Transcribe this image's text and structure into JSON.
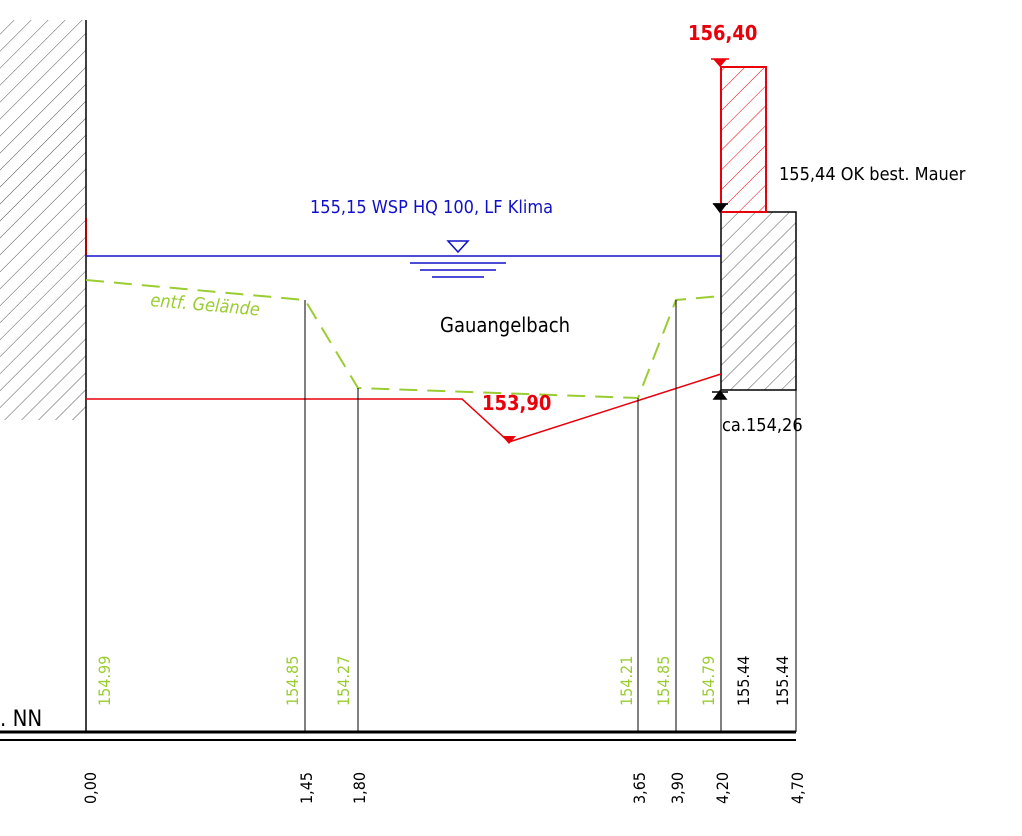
{
  "labels": {
    "top_elevation": "156,40",
    "wall_top_label": "155,44 OK best. Mauer",
    "water_level_label": "155,15 WSP HQ 100, LF Klima",
    "terrain_label": "entf. Gelände",
    "stream_name": "Gauangelbach",
    "channel_bottom": "153,90",
    "wall_base_label": "ca.154,26",
    "datum_label": ". NN"
  },
  "stations": [
    "0,00",
    "1,45",
    "1,80",
    "3,65",
    "3,90",
    "4,20",
    "4,70"
  ],
  "terrain_heights": [
    "154.99",
    "154.85",
    "154.27",
    "154.21",
    "154.85",
    "154.79"
  ],
  "wall_heights": [
    "155.44",
    "155.44"
  ],
  "colors": {
    "water": "#1010c8",
    "terrain": "#9acd32",
    "design": "#e8000b",
    "line": "#000000",
    "hatch": "#555555"
  }
}
